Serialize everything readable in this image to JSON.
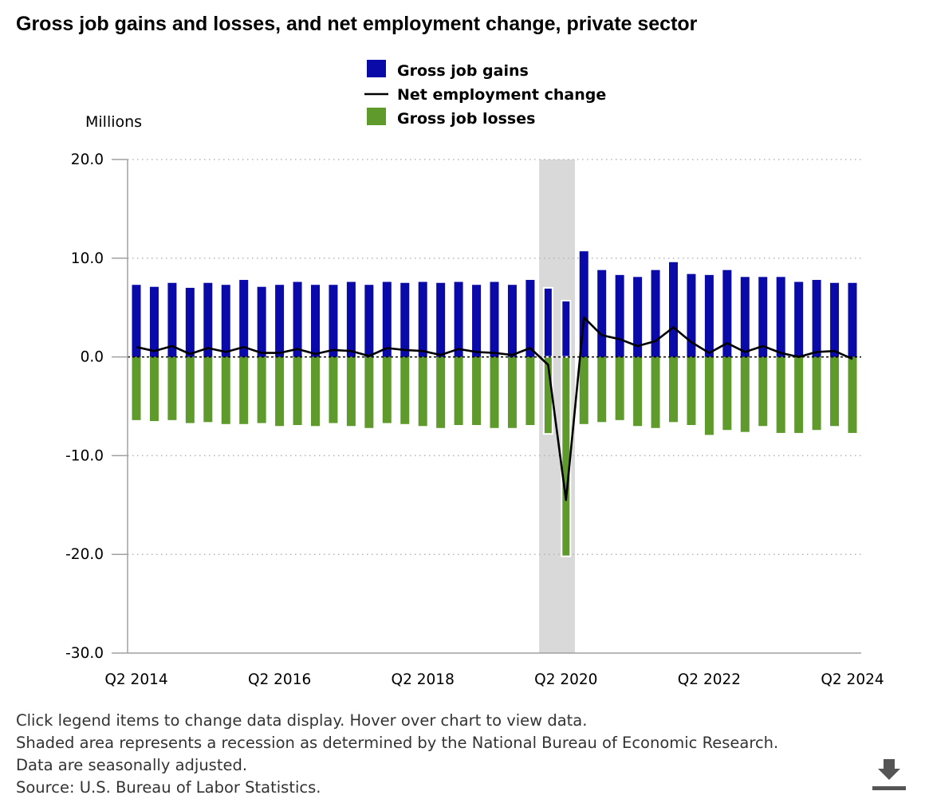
{
  "title": "Gross job gains and losses, and net employment change, private sector",
  "chart_data": {
    "type": "bar",
    "title": "Gross job gains and losses, and net employment change, private sector",
    "ylabel": "Millions",
    "xlabel": "",
    "ylim": [
      -30,
      20
    ],
    "yticks": [
      "20.0",
      "10.0",
      "0.0",
      "-10.0",
      "-20.0",
      "-30.0"
    ],
    "xtick_labels": [
      "Q2 2014",
      "Q2 2016",
      "Q2 2018",
      "Q2 2020",
      "Q2 2022",
      "Q2 2024"
    ],
    "grid": true,
    "legend_placement": "top-center",
    "recession": {
      "from": "Q1 2020",
      "to": "Q2 2020"
    },
    "categories": [
      "Q2 2014",
      "Q3 2014",
      "Q4 2014",
      "Q1 2015",
      "Q2 2015",
      "Q3 2015",
      "Q4 2015",
      "Q1 2016",
      "Q2 2016",
      "Q3 2016",
      "Q4 2016",
      "Q1 2017",
      "Q2 2017",
      "Q3 2017",
      "Q4 2017",
      "Q1 2018",
      "Q2 2018",
      "Q3 2018",
      "Q4 2018",
      "Q1 2019",
      "Q2 2019",
      "Q3 2019",
      "Q4 2019",
      "Q1 2020",
      "Q2 2020",
      "Q3 2020",
      "Q4 2020",
      "Q1 2021",
      "Q2 2021",
      "Q3 2021",
      "Q4 2021",
      "Q1 2022",
      "Q2 2022",
      "Q3 2022",
      "Q4 2022",
      "Q1 2023",
      "Q2 2023",
      "Q3 2023",
      "Q4 2023",
      "Q1 2024",
      "Q2 2024"
    ],
    "series": [
      {
        "name": "Gross job gains",
        "type": "bar",
        "color": "#0a0aa8",
        "values": [
          7.3,
          7.1,
          7.5,
          7.0,
          7.5,
          7.3,
          7.8,
          7.1,
          7.3,
          7.6,
          7.3,
          7.3,
          7.6,
          7.3,
          7.6,
          7.5,
          7.6,
          7.5,
          7.6,
          7.3,
          7.6,
          7.3,
          7.8,
          7.0,
          5.7,
          10.7,
          8.8,
          8.3,
          8.1,
          8.8,
          9.6,
          8.4,
          8.3,
          8.8,
          8.1,
          8.1,
          8.1,
          7.6,
          7.8,
          7.5,
          7.5
        ]
      },
      {
        "name": "Net employment change",
        "type": "line",
        "color": "#000000",
        "values": [
          1.0,
          0.6,
          1.1,
          0.3,
          0.9,
          0.5,
          1.0,
          0.4,
          0.4,
          0.8,
          0.3,
          0.7,
          0.6,
          0.1,
          0.9,
          0.7,
          0.6,
          0.2,
          0.8,
          0.5,
          0.4,
          0.2,
          0.9,
          -0.8,
          -14.5,
          4.0,
          2.2,
          1.8,
          1.1,
          1.6,
          3.0,
          1.5,
          0.4,
          1.4,
          0.5,
          1.1,
          0.4,
          0.0,
          0.5,
          0.6,
          -0.2
        ]
      },
      {
        "name": "Gross job losses",
        "type": "bar",
        "color": "#5f9a2c",
        "values": [
          -6.4,
          -6.5,
          -6.4,
          -6.7,
          -6.6,
          -6.8,
          -6.8,
          -6.7,
          -7.0,
          -6.9,
          -7.0,
          -6.7,
          -7.0,
          -7.2,
          -6.7,
          -6.8,
          -7.0,
          -7.2,
          -6.9,
          -6.9,
          -7.2,
          -7.2,
          -6.9,
          -7.8,
          -20.2,
          -6.8,
          -6.6,
          -6.4,
          -7.0,
          -7.2,
          -6.6,
          -6.9,
          -7.9,
          -7.4,
          -7.6,
          -7.0,
          -7.7,
          -7.7,
          -7.4,
          -7.0,
          -7.7
        ]
      }
    ]
  },
  "notes": [
    "Click legend items to change data display. Hover over chart to view data.",
    "Shaded area represents a recession as determined by the National Bureau of Economic Research.",
    "Data are seasonally adjusted.",
    "Source: U.S. Bureau of Labor Statistics."
  ],
  "download_icon": "download-icon"
}
